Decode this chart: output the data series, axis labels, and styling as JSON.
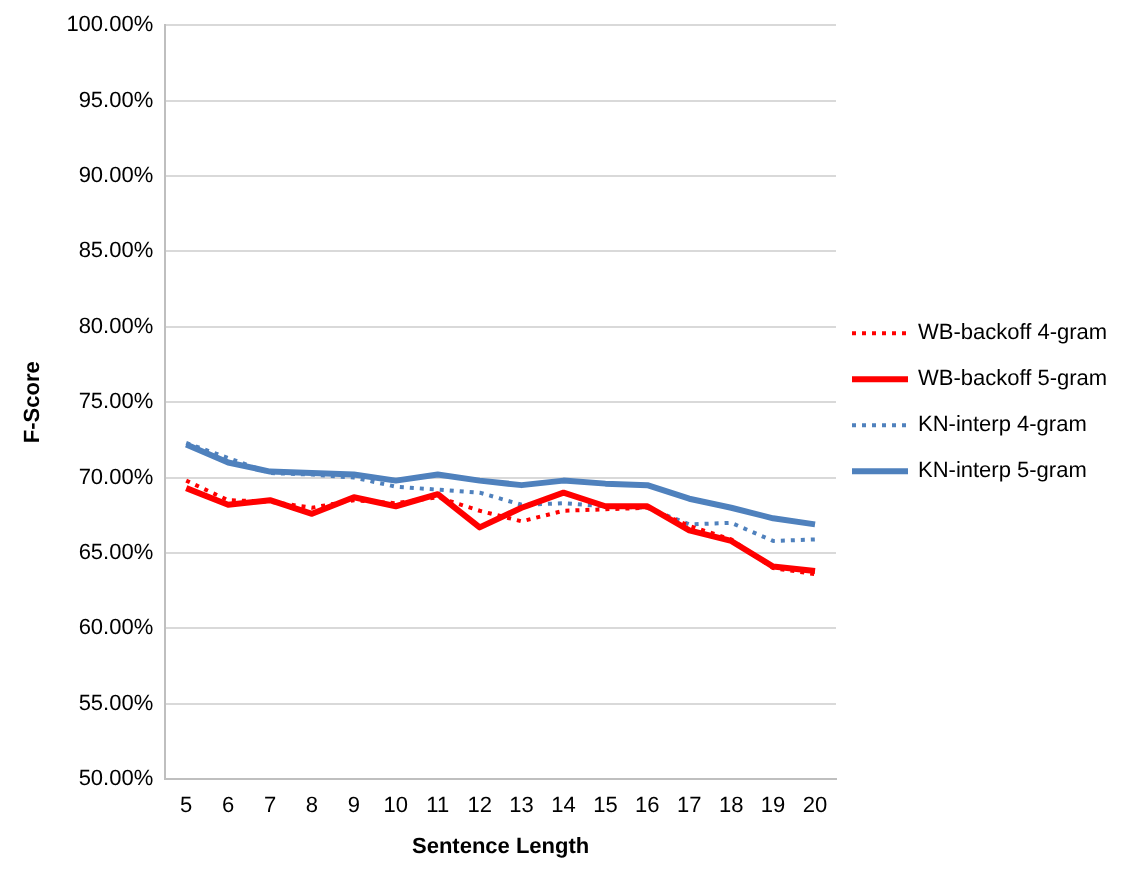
{
  "chart_data": {
    "type": "line",
    "xlabel": "Sentence Length",
    "ylabel": "F-Score",
    "categories": [
      "5",
      "6",
      "7",
      "8",
      "9",
      "10",
      "11",
      "12",
      "13",
      "14",
      "15",
      "16",
      "17",
      "18",
      "19",
      "20"
    ],
    "series": [
      {
        "name": "WB-backoff 4-gram",
        "color": "#ff0000",
        "line_style": "dotted",
        "values": [
          69.8,
          68.5,
          68.4,
          68.0,
          68.5,
          68.3,
          68.7,
          67.8,
          67.1,
          67.8,
          67.9,
          68.0,
          66.8,
          65.9,
          64.0,
          63.6
        ]
      },
      {
        "name": "WB-backoff 5-gram",
        "color": "#ff0000",
        "line_style": "solid",
        "values": [
          69.3,
          68.2,
          68.5,
          67.6,
          68.7,
          68.1,
          68.9,
          66.7,
          68.0,
          69.0,
          68.1,
          68.1,
          66.5,
          65.8,
          64.1,
          63.8
        ]
      },
      {
        "name": "KN-interp 4-gram",
        "color": "#4f81bd",
        "line_style": "dotted",
        "values": [
          72.3,
          71.3,
          70.3,
          70.2,
          70.0,
          69.4,
          69.2,
          69.0,
          68.2,
          68.3,
          68.1,
          68.0,
          66.9,
          67.0,
          65.8,
          65.9
        ]
      },
      {
        "name": "KN-interp 5-gram",
        "color": "#4f81bd",
        "line_style": "solid",
        "values": [
          72.2,
          71.0,
          70.4,
          70.3,
          70.2,
          69.8,
          70.2,
          69.8,
          69.5,
          69.8,
          69.6,
          69.5,
          68.6,
          68.0,
          67.3,
          66.9
        ]
      }
    ],
    "ylim": [
      50,
      100
    ],
    "yticks": [
      {
        "value": 50,
        "label": "50.00%"
      },
      {
        "value": 55,
        "label": "55.00%"
      },
      {
        "value": 60,
        "label": "60.00%"
      },
      {
        "value": 65,
        "label": "65.00%"
      },
      {
        "value": 70,
        "label": "70.00%"
      },
      {
        "value": 75,
        "label": "75.00%"
      },
      {
        "value": 80,
        "label": "80.00%"
      },
      {
        "value": 85,
        "label": "85.00%"
      },
      {
        "value": 90,
        "label": "90.00%"
      },
      {
        "value": 95,
        "label": "95.00%"
      },
      {
        "value": 100,
        "label": "100.00%"
      }
    ],
    "grid": "y",
    "legend": "right",
    "marker": "none"
  }
}
